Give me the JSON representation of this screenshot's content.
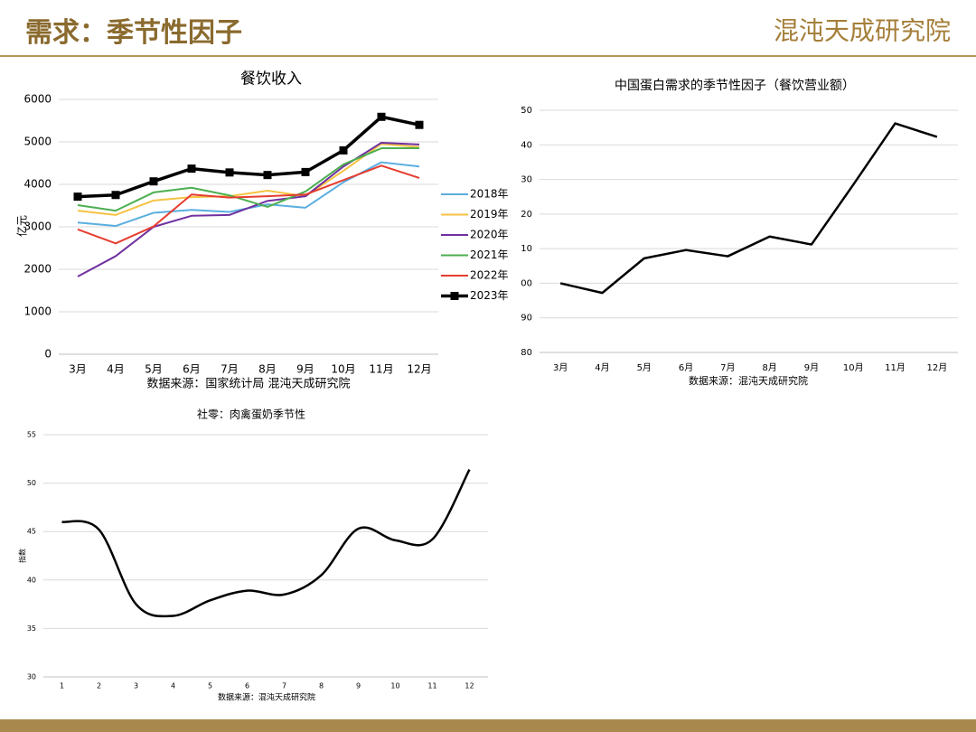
{
  "header": {
    "title": "需求：季节性因子",
    "logo": "混沌天成研究院"
  },
  "chart_data": [
    {
      "type": "line",
      "title": "餐饮收入",
      "y_label": "亿元",
      "source": "数据来源：国家统计局 混沌天成研究院",
      "categories": [
        "3月",
        "4月",
        "5月",
        "6月",
        "7月",
        "8月",
        "9月",
        "10月",
        "11月",
        "12月"
      ],
      "ylim": [
        0,
        6000
      ],
      "yticks": [
        0,
        1000,
        2000,
        3000,
        4000,
        5000,
        6000
      ],
      "grid": true,
      "legend": "right",
      "series": [
        {
          "name": "2018年",
          "color": "#5aaee0",
          "values": [
            3100,
            3020,
            3330,
            3400,
            3350,
            3530,
            3450,
            4050,
            4520,
            4420
          ]
        },
        {
          "name": "2019年",
          "color": "#f5c342",
          "values": [
            3380,
            3280,
            3620,
            3700,
            3720,
            3850,
            3720,
            4320,
            4950,
            4880
          ]
        },
        {
          "name": "2020年",
          "color": "#7030a0",
          "values": [
            1830,
            2310,
            3000,
            3260,
            3280,
            3610,
            3720,
            4420,
            4980,
            4940
          ]
        },
        {
          "name": "2021年",
          "color": "#4caf50",
          "values": [
            3510,
            3380,
            3810,
            3920,
            3740,
            3470,
            3830,
            4470,
            4850,
            4850
          ]
        },
        {
          "name": "2022年",
          "color": "#e63c2e",
          "values": [
            2940,
            2610,
            3010,
            3760,
            3690,
            3720,
            3760,
            4100,
            4440,
            4150
          ]
        },
        {
          "name": "2023年",
          "color": "#000000",
          "marker": "square",
          "values": [
            3710,
            3750,
            4070,
            4370,
            4280,
            4220,
            4290,
            4800,
            5590,
            5400
          ]
        }
      ]
    },
    {
      "type": "line",
      "title": "中国蛋白需求的季节性因子（餐饮营业额）",
      "source": "数据来源：混沌天成研究院",
      "categories": [
        "3月",
        "4月",
        "5月",
        "6月",
        "7月",
        "8月",
        "9月",
        "10月",
        "11月",
        "12月"
      ],
      "ylim": [
        80,
        150
      ],
      "yticks": [
        80,
        90,
        {
          "value": 100,
          "label": "00"
        },
        {
          "value": 110,
          "label": "10"
        },
        {
          "value": 120,
          "label": "20"
        },
        {
          "value": 130,
          "label": "30"
        },
        {
          "value": 140,
          "label": "40"
        },
        {
          "value": 150,
          "label": "50"
        }
      ],
      "grid": true,
      "color": "#000000",
      "values": [
        100,
        97.2,
        107.2,
        109.6,
        107.8,
        113.5,
        111.2,
        128.5,
        146.2,
        142.3
      ]
    },
    {
      "type": "line",
      "title": "社零：肉禽蛋奶季节性",
      "y_label": "指数",
      "source": "数据来源：混沌天成研究院",
      "smooth": true,
      "x": [
        1,
        2,
        3,
        4,
        5,
        6,
        7,
        8,
        9,
        10,
        11,
        12
      ],
      "xlim": [
        0.5,
        12.5
      ],
      "xticks": [
        1,
        2,
        3,
        4,
        5,
        6,
        7,
        8,
        9,
        10,
        11,
        12
      ],
      "ylim": [
        30,
        55
      ],
      "yticks": [
        30,
        35,
        40,
        45,
        50,
        55
      ],
      "grid": true,
      "color": "#000000",
      "values": [
        46,
        45.2,
        37.5,
        36.3,
        37.9,
        38.9,
        38.5,
        40.5,
        45.3,
        44.1,
        44.2,
        51.4
      ]
    }
  ]
}
